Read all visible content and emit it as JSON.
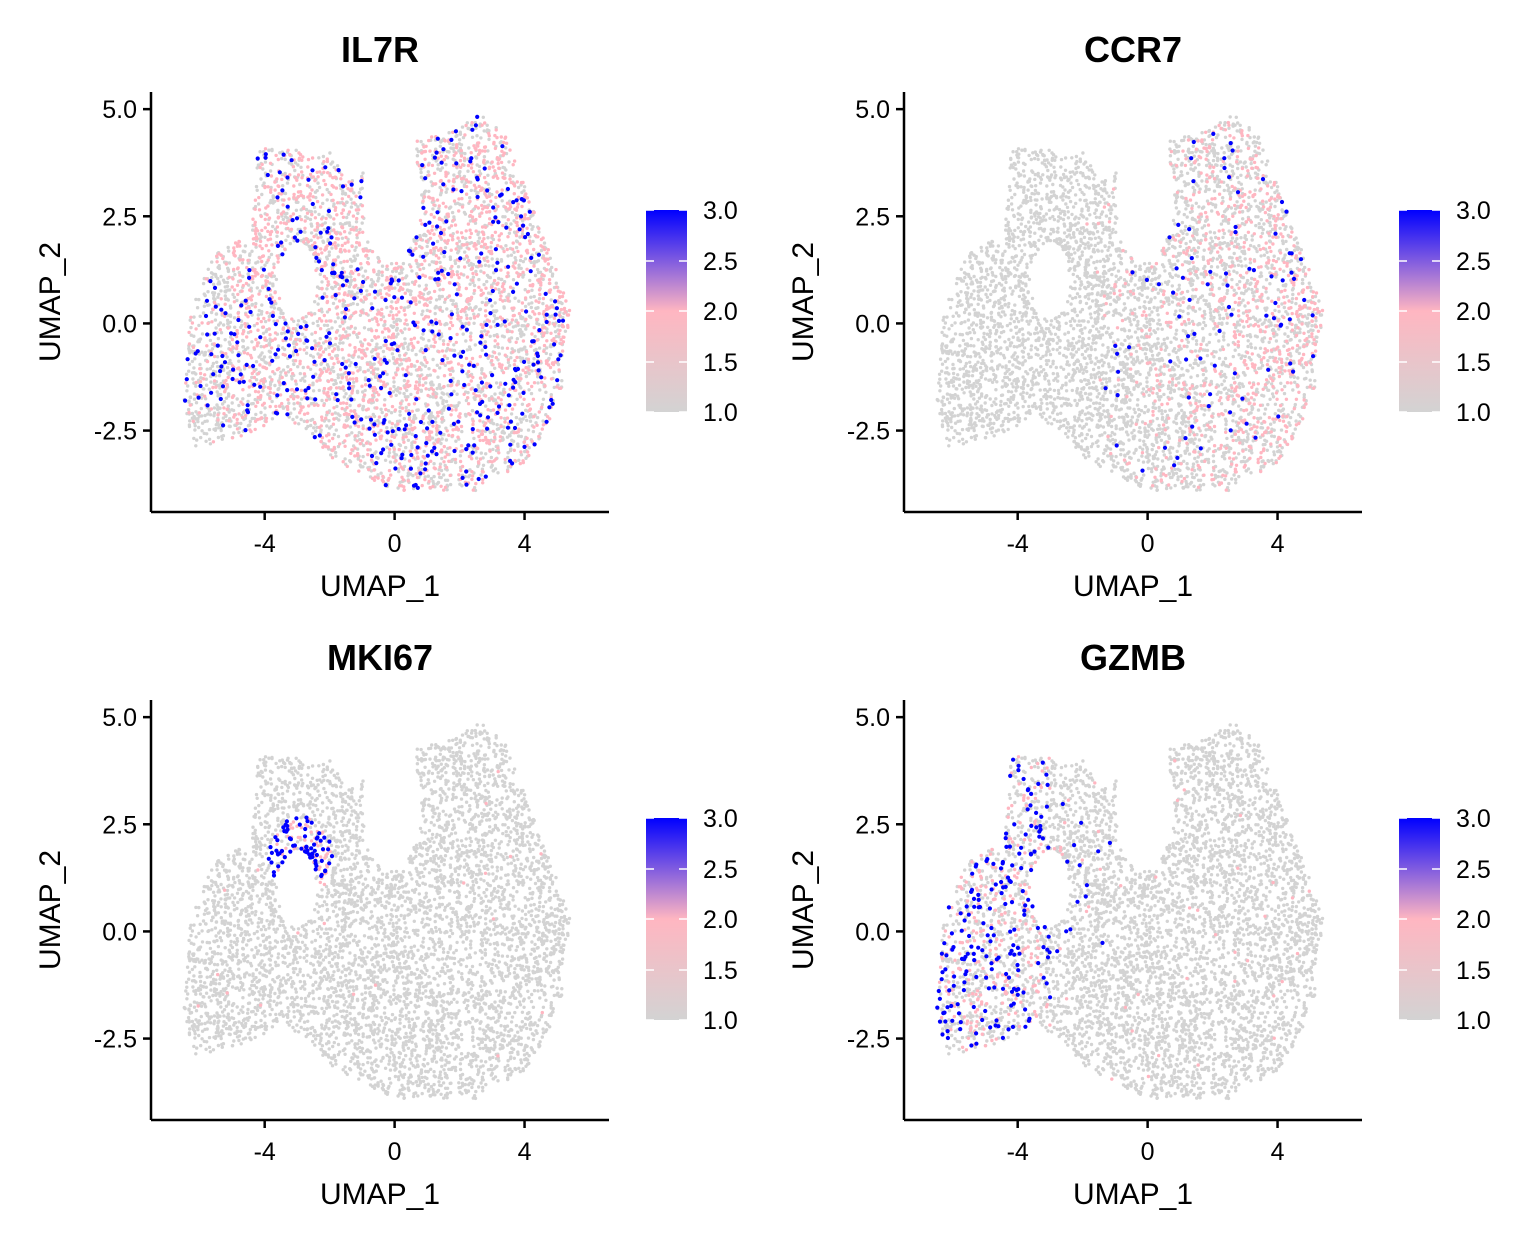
{
  "figure": {
    "colors": {
      "low": "#d3d3d3",
      "mid": "#ffb6c1",
      "high": "#0000ff",
      "axis": "#000000"
    }
  },
  "chart_data": [
    {
      "type": "scatter",
      "title": "IL7R",
      "xlabel": "UMAP_1",
      "ylabel": "UMAP_2",
      "xlim": [
        -7.5,
        6.6
      ],
      "ylim": [
        -4.4,
        5.4
      ],
      "xticks": [
        -4,
        0,
        4
      ],
      "xtick_labels": [
        "-4",
        "0",
        "4"
      ],
      "yticks": [
        -2.5,
        0.0,
        2.5,
        5.0
      ],
      "ytick_labels": [
        "-2.5",
        "0.0",
        "2.5",
        "5.0"
      ],
      "legend": {
        "position": "right",
        "range": [
          1.0,
          3.0
        ],
        "labels": [
          "3.0",
          "2.5",
          "2.0",
          "1.5",
          "1.0"
        ]
      },
      "expression": "broad",
      "hotspots": [
        [
          -4.0,
          0.0
        ],
        [
          -2.5,
          3.3
        ],
        [
          3.5,
          -1.0
        ],
        [
          1.0,
          -3.0
        ]
      ],
      "grid": false
    },
    {
      "type": "scatter",
      "title": "CCR7",
      "xlabel": "UMAP_1",
      "ylabel": "UMAP_2",
      "xlim": [
        -7.5,
        6.6
      ],
      "ylim": [
        -4.4,
        5.4
      ],
      "xticks": [
        -4,
        0,
        4
      ],
      "xtick_labels": [
        "-4",
        "0",
        "4"
      ],
      "yticks": [
        -2.5,
        0.0,
        2.5,
        5.0
      ],
      "ytick_labels": [
        "-2.5",
        "0.0",
        "2.5",
        "5.0"
      ],
      "legend": {
        "position": "right",
        "range": [
          1.0,
          3.0
        ],
        "labels": [
          "3.0",
          "2.5",
          "2.0",
          "1.5",
          "1.0"
        ]
      },
      "expression": "right",
      "hotspots": [
        [
          4.3,
          1.0
        ],
        [
          3.5,
          3.8
        ],
        [
          1.5,
          -2.0
        ]
      ],
      "grid": false
    },
    {
      "type": "scatter",
      "title": "MKI67",
      "xlabel": "UMAP_1",
      "ylabel": "UMAP_2",
      "xlim": [
        -7.5,
        6.6
      ],
      "ylim": [
        -4.4,
        5.4
      ],
      "xticks": [
        -4,
        0,
        4
      ],
      "xtick_labels": [
        "-4",
        "0",
        "4"
      ],
      "yticks": [
        -2.5,
        0.0,
        2.5,
        5.0
      ],
      "ytick_labels": [
        "-2.5",
        "0.0",
        "2.5",
        "5.0"
      ],
      "legend": {
        "position": "right",
        "range": [
          1.0,
          3.0
        ],
        "labels": [
          "3.0",
          "2.5",
          "2.0",
          "1.5",
          "1.0"
        ]
      },
      "expression": "cluster",
      "hotspots": [
        [
          -2.9,
          1.7
        ]
      ],
      "grid": false
    },
    {
      "type": "scatter",
      "title": "GZMB",
      "xlabel": "UMAP_1",
      "ylabel": "UMAP_2",
      "xlim": [
        -7.5,
        6.6
      ],
      "ylim": [
        -4.4,
        5.4
      ],
      "xticks": [
        -4,
        0,
        4
      ],
      "xtick_labels": [
        "-4",
        "0",
        "4"
      ],
      "yticks": [
        -2.5,
        0.0,
        2.5,
        5.0
      ],
      "ytick_labels": [
        "-2.5",
        "0.0",
        "2.5",
        "5.0"
      ],
      "legend": {
        "position": "right",
        "range": [
          1.0,
          3.0
        ],
        "labels": [
          "3.0",
          "2.5",
          "2.0",
          "1.5",
          "1.0"
        ]
      },
      "expression": "left",
      "hotspots": [
        [
          -5.4,
          -0.4
        ],
        [
          -3.2,
          1.3
        ]
      ],
      "grid": false
    }
  ]
}
